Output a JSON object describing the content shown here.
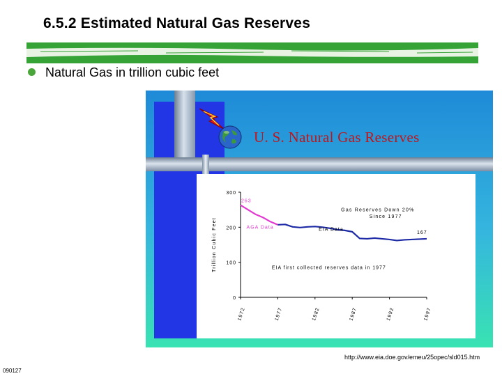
{
  "slide": {
    "title": "6.5.2 Estimated Natural Gas Reserves",
    "bullet": "Natural Gas in trillion cubic feet",
    "source_url": "http://www.eia.doe.gov/emeu/25opec/sld015.htm",
    "footer_code": "090127"
  },
  "figure": {
    "banner_title": "U. S. Natural Gas Reserves",
    "colors": {
      "panel_top": "#1f8ad8",
      "panel_bottom": "#39e3b2",
      "banner_title": "#c0161b",
      "aga_line": "#e23ad0",
      "eia_line": "#1d2aa6"
    }
  },
  "chart_data": {
    "type": "line",
    "ylabel": "Trillion Cubic Feet",
    "ylim": [
      0,
      300
    ],
    "yticks": [
      "300",
      "200",
      "100",
      "0"
    ],
    "yticks_values": [
      300,
      200,
      100,
      0
    ],
    "xlim": [
      1972,
      1997
    ],
    "xticks": [
      "1972",
      "1977",
      "1982",
      "1987",
      "1992",
      "1997"
    ],
    "xticks_values": [
      1972,
      1977,
      1982,
      1987,
      1992,
      1997
    ],
    "series": [
      {
        "name": "AGA Data",
        "color": "#e23ad0",
        "x": [
          1972,
          1973,
          1974,
          1975,
          1976,
          1977
        ],
        "y": [
          263,
          250,
          237,
          228,
          216,
          207
        ]
      },
      {
        "name": "EIA Data",
        "color": "#1d2aa6",
        "x": [
          1977,
          1978,
          1979,
          1980,
          1981,
          1982,
          1983,
          1984,
          1985,
          1986,
          1987,
          1988,
          1989,
          1990,
          1991,
          1992,
          1993,
          1994,
          1995,
          1996,
          1997
        ],
        "y": [
          207,
          208,
          201,
          199,
          201,
          202,
          200,
          197,
          193,
          191,
          187,
          168,
          167,
          169,
          167,
          165,
          162,
          164,
          165,
          166,
          167
        ]
      }
    ],
    "annotations": {
      "start_value": "263",
      "end_value": "167",
      "note_line1": "Gas Reserves Down 20%",
      "note_line2": "Since 1977",
      "eia_first": "EIA first collected reserves data in 1977"
    }
  }
}
